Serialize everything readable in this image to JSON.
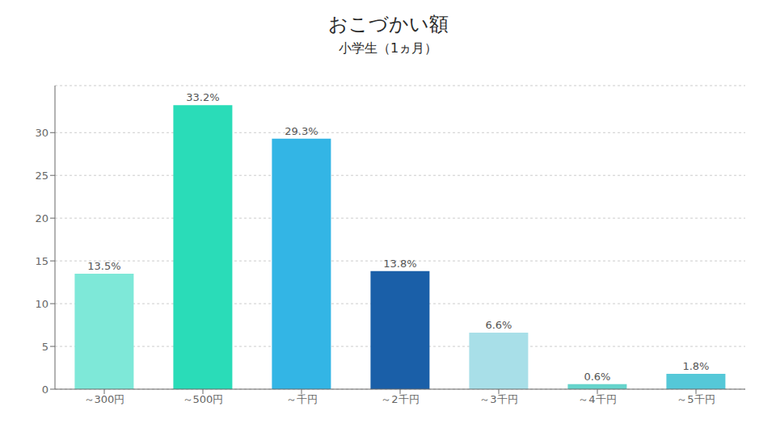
{
  "chart_data": {
    "type": "bar",
    "title": "おこづかい額",
    "subtitle": "小学生（1ヵ月）",
    "categories": [
      "～300円",
      "～500円",
      "～千円",
      "～2千円",
      "～3千円",
      "～4千円",
      "～5千円"
    ],
    "values": [
      13.5,
      33.2,
      29.3,
      13.8,
      6.6,
      0.6,
      1.8
    ],
    "value_labels": [
      "13.5%",
      "33.2%",
      "29.3%",
      "13.8%",
      "6.6%",
      "0.6%",
      "1.8%"
    ],
    "colors": [
      "#7ee8d8",
      "#2adcb8",
      "#33b5e5",
      "#1a5fa8",
      "#a8dfe8",
      "#66d4cc",
      "#55c8d8"
    ],
    "ylim": [
      0,
      35.5
    ],
    "yticks": [
      0,
      5,
      10,
      15,
      20,
      25,
      30
    ],
    "grid": true,
    "data_labels": true
  }
}
